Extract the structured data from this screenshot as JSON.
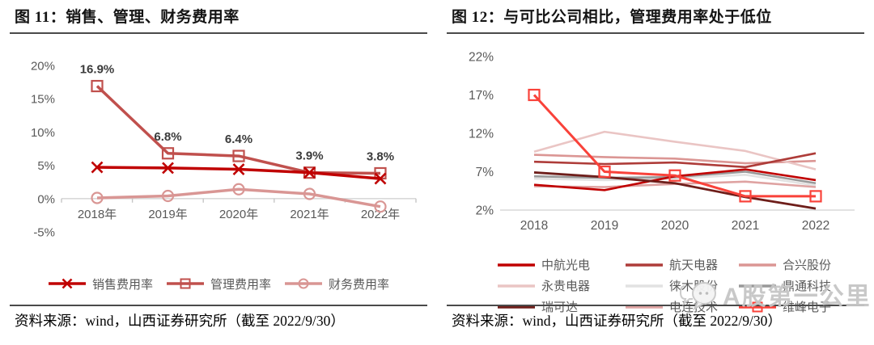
{
  "panels": [
    {
      "title": "图 11：销售、管理、财务费用率",
      "source": "资料来源：wind，山西证券研究所（截至 2022/9/30）"
    },
    {
      "title": "图 12：与可比公司相比，管理费用率处于低位",
      "source": "资料来源：wind，山西证券研究所（截至 2022/9/30）"
    }
  ],
  "watermark": {
    "text": "A股第一公里",
    "icon": "chat-bubble-icon",
    "color": "#c6c6c6"
  },
  "chart_data": [
    {
      "type": "line",
      "title": "销售、管理、财务费用率",
      "categories": [
        "2018年",
        "2019年",
        "2020年",
        "2021年",
        "2022年"
      ],
      "ylim": [
        -5,
        20
      ],
      "yticks": [
        20,
        15,
        10,
        5,
        0,
        -5
      ],
      "ytick_suffix": "%",
      "grid": false,
      "legend_position": "bottom",
      "axis_color": "#d9d9d9",
      "series": [
        {
          "name": "销售费用率",
          "color": "#C00000",
          "marker": "x",
          "width": 3.5,
          "z": 3,
          "values": [
            4.7,
            4.6,
            4.4,
            3.9,
            3.0
          ]
        },
        {
          "name": "管理费用率",
          "color": "#C0504D",
          "marker": "square",
          "width": 3.5,
          "z": 2,
          "values": [
            16.9,
            6.8,
            6.4,
            3.9,
            3.8
          ],
          "point_labels": [
            "16.9%",
            "6.8%",
            "6.4%",
            "3.9%",
            "3.8%"
          ]
        },
        {
          "name": "财务费用率",
          "color": "#D99694",
          "marker": "circle",
          "width": 3.5,
          "z": 1,
          "values": [
            0.1,
            0.4,
            1.4,
            0.7,
            -1.2
          ]
        }
      ]
    },
    {
      "type": "line",
      "title": "与可比公司相比，管理费用率处于低位",
      "categories": [
        "2018",
        "2019",
        "2020",
        "2021",
        "2022"
      ],
      "ylim": [
        2,
        22
      ],
      "yticks": [
        22,
        17,
        12,
        7,
        2
      ],
      "ytick_suffix": "%",
      "grid": false,
      "legend_position": "bottom",
      "axis_color": "#d9d9d9",
      "series": [
        {
          "name": "中航光电",
          "color": "#C00000",
          "width": 2.6,
          "z": 3,
          "values": [
            5.3,
            4.6,
            6.4,
            7.3,
            5.9
          ]
        },
        {
          "name": "航天电器",
          "color": "#AE3C39",
          "width": 2.6,
          "z": 2,
          "values": [
            8.3,
            8.0,
            8.2,
            7.6,
            9.4
          ]
        },
        {
          "name": "合兴股份",
          "color": "#DB9694",
          "width": 2.6,
          "z": 1,
          "values": [
            9.2,
            8.9,
            8.7,
            8.1,
            8.4
          ]
        },
        {
          "name": "永贵电器",
          "color": "#EAC5C4",
          "width": 2.6,
          "z": 1,
          "values": [
            9.6,
            12.2,
            10.9,
            9.7,
            7.3
          ]
        },
        {
          "name": "徕木股份",
          "color": "#E2E2E2",
          "width": 2.6,
          "z": 1,
          "values": [
            6.1,
            5.9,
            6.1,
            6.6,
            5.2
          ]
        },
        {
          "name": "鼎通科技",
          "color": "#999999",
          "width": 2.6,
          "z": 2,
          "values": [
            6.4,
            6.2,
            6.3,
            7.0,
            5.5
          ]
        },
        {
          "name": "瑞可达",
          "color": "#6E1E1A",
          "width": 2.8,
          "z": 3,
          "values": [
            6.9,
            6.3,
            5.5,
            3.7,
            2.2
          ]
        },
        {
          "name": "电连技术",
          "color": "#DFA3A2",
          "width": 2.6,
          "z": 1,
          "values": [
            5.1,
            5.0,
            5.4,
            5.7,
            5.0
          ]
        },
        {
          "name": "维峰电子",
          "color": "#F9423A",
          "marker": "square",
          "marker_size": 13,
          "width": 3,
          "z": 4,
          "values": [
            17.0,
            7.0,
            6.5,
            3.8,
            3.8
          ]
        }
      ]
    }
  ]
}
